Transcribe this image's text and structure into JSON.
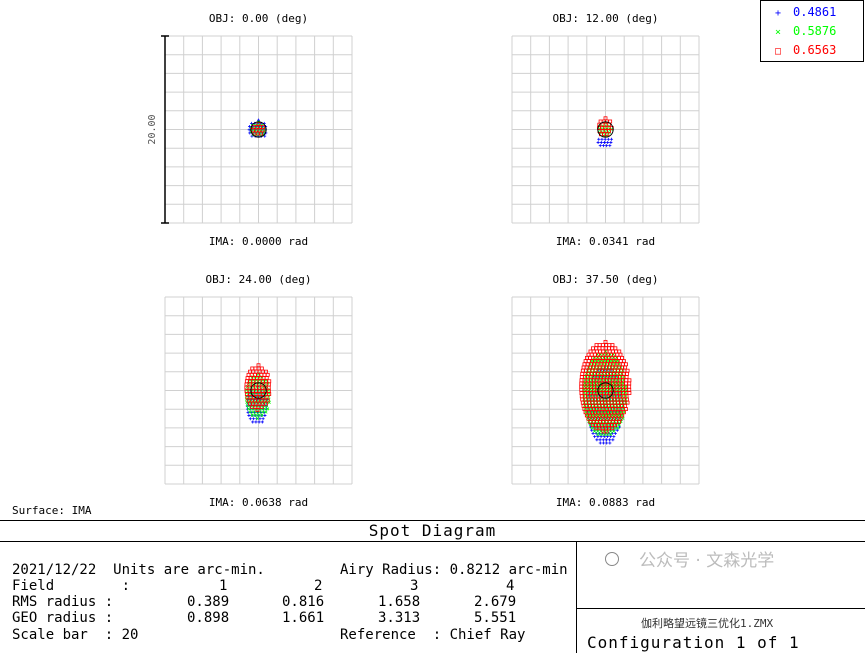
{
  "chart_data": {
    "type": "scatter",
    "title": "Spot Diagram",
    "scale_bar": 20,
    "scale_bar_label": "20.00",
    "grid": true,
    "fields": [
      {
        "obj_label": "OBJ: 0.00 (deg)",
        "ima_label": "IMA: 0.0000 rad",
        "spots": [
          {
            "wavelength": "0.4861",
            "cx": 0.0,
            "cy": 0.0,
            "rx": 1.0,
            "ry": 1.0
          },
          {
            "wavelength": "0.5876",
            "cx": 0.0,
            "cy": 0.0,
            "rx": 0.8,
            "ry": 0.8
          },
          {
            "wavelength": "0.6563",
            "cx": 0.0,
            "cy": 0.0,
            "rx": 0.6,
            "ry": 0.6
          }
        ]
      },
      {
        "obj_label": "OBJ: 12.00 (deg)",
        "ima_label": "IMA: 0.0341 rad",
        "spots": [
          {
            "wavelength": "0.4861",
            "cx": 0.0,
            "cy": -1.3,
            "rx": 0.8,
            "ry": 0.6
          },
          {
            "wavelength": "0.5876",
            "cx": 0.0,
            "cy": 0.0,
            "rx": 0.7,
            "ry": 0.7
          },
          {
            "wavelength": "0.6563",
            "cx": 0.0,
            "cy": 0.2,
            "rx": 0.7,
            "ry": 1.0
          }
        ]
      },
      {
        "obj_label": "OBJ: 24.00 (deg)",
        "ima_label": "IMA: 0.0638 rad",
        "spots": [
          {
            "wavelength": "0.4861",
            "cx": -0.1,
            "cy": -1.6,
            "rx": 1.1,
            "ry": 2.0
          },
          {
            "wavelength": "0.5876",
            "cx": 0.0,
            "cy": -0.6,
            "rx": 1.3,
            "ry": 2.4
          },
          {
            "wavelength": "0.6563",
            "cx": 0.0,
            "cy": 0.3,
            "rx": 1.3,
            "ry": 2.4
          }
        ]
      },
      {
        "obj_label": "OBJ: 37.50 (deg)",
        "ima_label": "IMA: 0.0883 rad",
        "spots": [
          {
            "wavelength": "0.4861",
            "cx": 0.0,
            "cy": -1.6,
            "rx": 1.9,
            "ry": 4.2
          },
          {
            "wavelength": "0.5876",
            "cx": 0.0,
            "cy": -0.4,
            "rx": 2.3,
            "ry": 4.6
          },
          {
            "wavelength": "0.6563",
            "cx": 0.0,
            "cy": 0.4,
            "rx": 2.6,
            "ry": 4.8
          }
        ]
      }
    ],
    "legend": [
      {
        "symbol": "+",
        "label": "0.4861",
        "color": "#0000ff"
      },
      {
        "symbol": "×",
        "label": "0.5876",
        "color": "#00ff00"
      },
      {
        "symbol": "□",
        "label": "0.6563",
        "color": "#ff0000"
      }
    ]
  },
  "surface_label": "Surface: IMA",
  "footer": {
    "title": "Spot Diagram",
    "date_units": "2021/12/22  Units are arc-min.",
    "airy": "Airy Radius: 0.8212 arc-min",
    "field_row": {
      "label": "Field        :",
      "values": [
        "1",
        "2",
        "3",
        "4"
      ]
    },
    "rms_row": {
      "label": "RMS radius :",
      "values": [
        "0.389",
        "0.816",
        "1.658",
        "2.679"
      ]
    },
    "geo_row": {
      "label": "GEO radius :",
      "values": [
        "0.898",
        "1.661",
        "3.313",
        "5.551"
      ]
    },
    "scale": "Scale bar  : 20",
    "reference": "Reference  : Chief Ray",
    "config_file": "伽利略望远镜三优化1.ZMX",
    "config": "Configuration 1 of 1",
    "watermark": "公众号 · 文森光学"
  }
}
